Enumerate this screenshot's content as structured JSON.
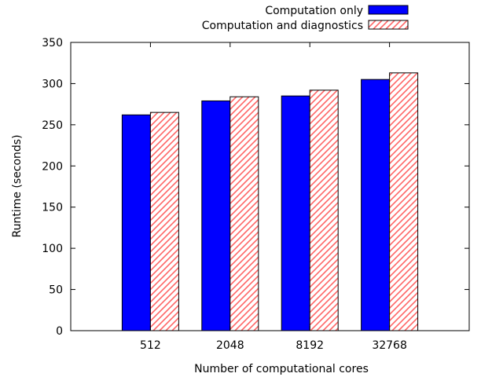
{
  "chart_data": {
    "type": "bar",
    "title": "",
    "xlabel": "Number of computational cores",
    "ylabel": "Runtime (seconds)",
    "categories": [
      "512",
      "2048",
      "8192",
      "32768"
    ],
    "ylim": [
      0,
      350
    ],
    "yticks": [
      0,
      50,
      100,
      150,
      200,
      250,
      300,
      350
    ],
    "grid": false,
    "legend_position": "top-right",
    "series": [
      {
        "name": "Computation only",
        "values": [
          262,
          279,
          285,
          305
        ],
        "color": "#0000ff",
        "pattern": "solid"
      },
      {
        "name": "Computation and diagnostics",
        "values": [
          265,
          284,
          292,
          313
        ],
        "color": "#ff6666",
        "pattern": "hatched"
      }
    ]
  }
}
